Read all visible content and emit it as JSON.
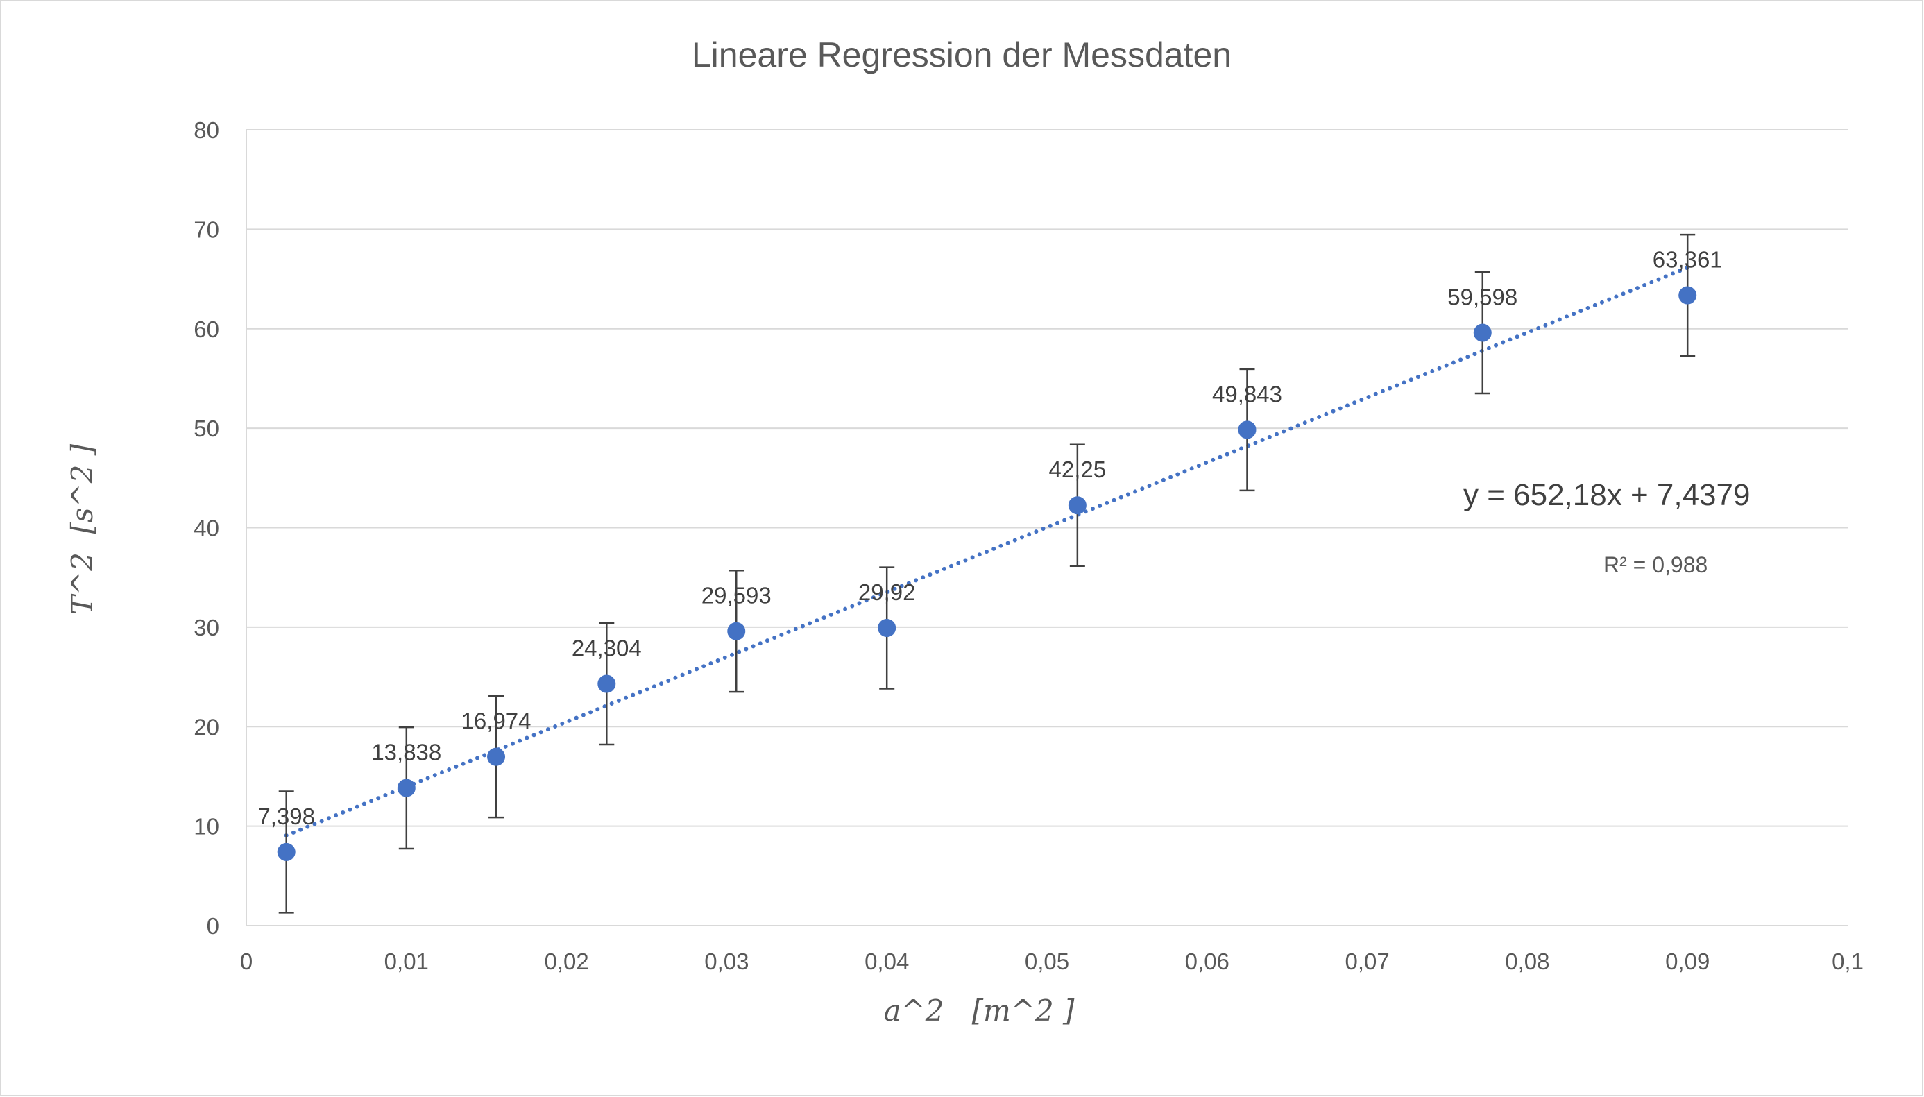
{
  "chart_data": {
    "type": "scatter",
    "title": "Lineare Regression der Messdaten",
    "xlabel": "a^2   [m^2 ]",
    "ylabel": "T^2  [s^2 ]",
    "xlim": [
      0,
      0.1
    ],
    "ylim": [
      0,
      80
    ],
    "x_ticks": [
      "0",
      "0,01",
      "0,02",
      "0,03",
      "0,04",
      "0,05",
      "0,06",
      "0,07",
      "0,08",
      "0,09",
      "0,1"
    ],
    "y_ticks": [
      "0",
      "10",
      "20",
      "30",
      "40",
      "50",
      "60",
      "70",
      "80"
    ],
    "grid": "horizontal",
    "series": [
      {
        "x": [
          0.0025,
          0.01,
          0.0156,
          0.0225,
          0.0306,
          0.04,
          0.0519,
          0.0625,
          0.0772,
          0.09
        ],
        "y": [
          7.398,
          13.838,
          16.974,
          24.304,
          29.593,
          29.92,
          42.25,
          49.843,
          59.598,
          63.361
        ],
        "labels": [
          "7,398",
          "13,838",
          "16,974",
          "24,304",
          "29,593",
          "29,92",
          "42,25",
          "49,843",
          "59,598",
          "63,361"
        ],
        "error_y": 6.1,
        "color": "#4472c4"
      }
    ],
    "trendline": {
      "type": "linear",
      "slope": 652.18,
      "intercept": 7.4379,
      "x_range": [
        0.0025,
        0.09
      ],
      "equation": "y = 652,18x + 7,4379",
      "r_squared": "R² = 0,988",
      "color": "#4472c4",
      "style": "dotted"
    }
  }
}
